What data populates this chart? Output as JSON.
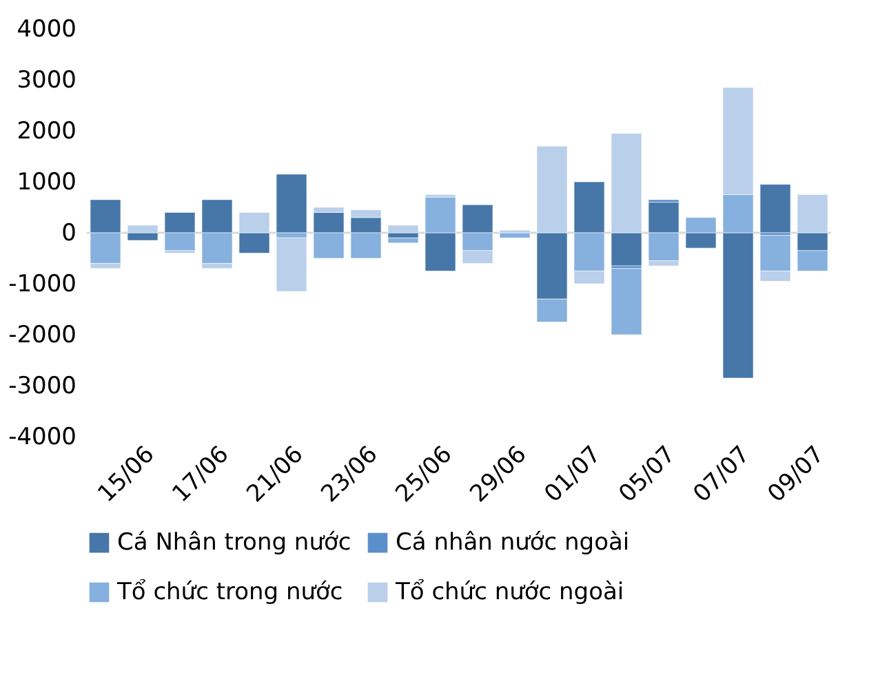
{
  "chart_data": {
    "type": "bar",
    "stacked": true,
    "categories": [
      null,
      "15/06",
      null,
      "17/06",
      null,
      "21/06",
      null,
      "23/06",
      null,
      "25/06",
      null,
      "29/06",
      null,
      "01/07",
      null,
      "05/07",
      null,
      "07/07",
      null,
      "09/07"
    ],
    "series": [
      {
        "name": "Cá Nhân trong nước",
        "color": "#4677a8",
        "values": [
          650,
          -150,
          400,
          650,
          -400,
          1150,
          400,
          300,
          -100,
          -750,
          550,
          null,
          -1300,
          1000,
          -650,
          600,
          -300,
          -2850,
          950,
          -350
        ]
      },
      {
        "name": "Cá nhân nước ngoài",
        "color": "#5b8fcc",
        "values": [
          null,
          null,
          null,
          null,
          null,
          null,
          null,
          null,
          null,
          null,
          null,
          null,
          null,
          null,
          -50,
          50,
          null,
          null,
          -50,
          null
        ]
      },
      {
        "name": "Tổ chức trong nước",
        "color": "#86b0de",
        "values": [
          -600,
          null,
          -350,
          -600,
          null,
          -100,
          -500,
          -500,
          -100,
          700,
          -350,
          -100,
          -450,
          -750,
          -1300,
          -550,
          300,
          750,
          -700,
          -400
        ]
      },
      {
        "name": "Tổ chức nước ngoài",
        "color": "#b9cfea",
        "values": [
          -100,
          150,
          -50,
          -100,
          400,
          -1050,
          100,
          150,
          150,
          50,
          -250,
          50,
          1700,
          -250,
          1950,
          -100,
          null,
          2100,
          -200,
          750
        ]
      }
    ],
    "ylim": [
      -4000,
      4000
    ],
    "yticks": [
      -4000,
      -3000,
      -2000,
      -1000,
      0,
      1000,
      2000,
      3000,
      4000
    ],
    "legend": "bottom"
  }
}
